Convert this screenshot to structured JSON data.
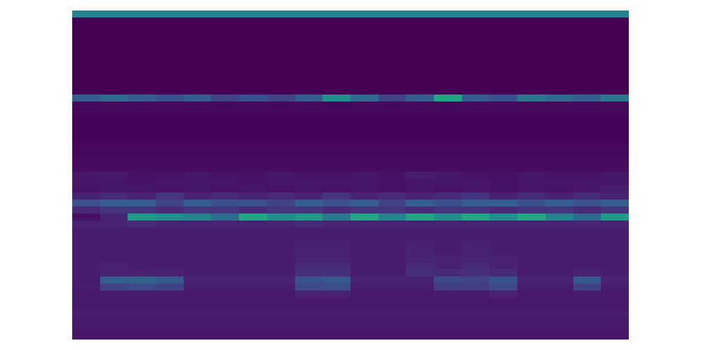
{
  "chart_data": {
    "type": "heatmap",
    "color": "viridis",
    "tick_labels": false,
    "grid": false,
    "value_range": [
      0,
      1
    ],
    "cells": [
      [
        0.45,
        0.45,
        0.45,
        0.45,
        0.45,
        0.45,
        0.45,
        0.45,
        0.45,
        0.45,
        0.45,
        0.45,
        0.45,
        0.45,
        0.45,
        0.45,
        0.45,
        0.45,
        0.45,
        0.45
      ],
      [
        0,
        0,
        0,
        0,
        0,
        0,
        0,
        0,
        0,
        0,
        0,
        0,
        0,
        0,
        0,
        0,
        0,
        0,
        0,
        0
      ],
      [
        0,
        0,
        0,
        0,
        0,
        0,
        0,
        0,
        0,
        0,
        0,
        0,
        0,
        0,
        0,
        0,
        0,
        0,
        0,
        0
      ],
      [
        0,
        0,
        0,
        0,
        0,
        0,
        0,
        0,
        0,
        0,
        0,
        0,
        0,
        0,
        0,
        0,
        0,
        0,
        0,
        0
      ],
      [
        0,
        0,
        0,
        0,
        0,
        0,
        0,
        0,
        0,
        0,
        0,
        0,
        0,
        0,
        0,
        0,
        0,
        0,
        0,
        0
      ],
      [
        0,
        0,
        0,
        0,
        0,
        0,
        0,
        0,
        0,
        0,
        0,
        0,
        0,
        0,
        0,
        0,
        0,
        0,
        0,
        0
      ],
      [
        0,
        0,
        0,
        0,
        0,
        0,
        0,
        0,
        0,
        0,
        0,
        0,
        0,
        0,
        0,
        0,
        0,
        0,
        0,
        0
      ],
      [
        0,
        0,
        0,
        0,
        0,
        0,
        0,
        0,
        0,
        0,
        0,
        0,
        0,
        0,
        0,
        0,
        0,
        0,
        0,
        0
      ],
      [
        0,
        0,
        0,
        0,
        0,
        0,
        0,
        0,
        0,
        0,
        0,
        0,
        0,
        0,
        0,
        0,
        0,
        0,
        0,
        0
      ],
      [
        0,
        0,
        0,
        0,
        0,
        0,
        0,
        0,
        0,
        0,
        0,
        0,
        0,
        0,
        0,
        0,
        0,
        0,
        0,
        0
      ],
      [
        0,
        0,
        0,
        0,
        0,
        0,
        0,
        0,
        0,
        0,
        0,
        0,
        0,
        0,
        0,
        0,
        0,
        0,
        0,
        0
      ],
      [
        0,
        0,
        0,
        0,
        0,
        0,
        0,
        0,
        0,
        0,
        0,
        0,
        0,
        0,
        0,
        0,
        0,
        0,
        0,
        0
      ],
      [
        0.3,
        0.35,
        0.3,
        0.25,
        0.3,
        0.2,
        0.25,
        0.2,
        0.3,
        0.5,
        0.35,
        0.2,
        0.3,
        0.6,
        0.3,
        0.25,
        0.4,
        0.35,
        0.3,
        0.4
      ],
      [
        0.02,
        0.02,
        0.02,
        0.02,
        0.02,
        0.02,
        0.02,
        0.02,
        0.02,
        0.02,
        0.02,
        0.02,
        0.02,
        0.02,
        0.02,
        0.02,
        0.02,
        0.02,
        0.02,
        0.02
      ],
      [
        0.02,
        0.02,
        0.02,
        0.02,
        0.02,
        0.02,
        0.02,
        0.02,
        0.02,
        0.02,
        0.02,
        0.02,
        0.02,
        0.02,
        0.02,
        0.02,
        0.02,
        0.02,
        0.02,
        0.02
      ],
      [
        0.01,
        0.01,
        0.01,
        0.01,
        0.01,
        0.01,
        0.01,
        0.01,
        0.01,
        0.01,
        0.01,
        0.01,
        0.01,
        0.01,
        0.01,
        0.01,
        0.01,
        0.01,
        0.01,
        0.01
      ],
      [
        0.01,
        0.01,
        0.01,
        0.01,
        0.01,
        0.01,
        0.01,
        0.01,
        0.01,
        0.01,
        0.01,
        0.01,
        0.01,
        0.01,
        0.01,
        0.01,
        0.01,
        0.01,
        0.01,
        0.01
      ],
      [
        0.01,
        0.01,
        0.01,
        0.01,
        0.01,
        0.01,
        0.01,
        0.01,
        0.01,
        0.01,
        0.01,
        0.01,
        0.01,
        0.01,
        0.01,
        0.01,
        0.01,
        0.01,
        0.01,
        0.01
      ],
      [
        0.01,
        0.01,
        0.01,
        0.01,
        0.01,
        0.01,
        0.01,
        0.01,
        0.01,
        0.01,
        0.01,
        0.01,
        0.01,
        0.01,
        0.01,
        0.01,
        0.01,
        0.01,
        0.01,
        0.01
      ],
      [
        0.02,
        0.02,
        0.02,
        0.02,
        0.02,
        0.02,
        0.02,
        0.02,
        0.02,
        0.02,
        0.02,
        0.02,
        0.02,
        0.02,
        0.02,
        0.02,
        0.02,
        0.02,
        0.02,
        0.02
      ],
      [
        0.02,
        0.02,
        0.02,
        0.02,
        0.02,
        0.02,
        0.02,
        0.02,
        0.02,
        0.02,
        0.02,
        0.02,
        0.02,
        0.02,
        0.02,
        0.02,
        0.02,
        0.02,
        0.02,
        0.02
      ],
      [
        0.03,
        0.03,
        0.03,
        0.03,
        0.03,
        0.03,
        0.03,
        0.03,
        0.03,
        0.03,
        0.03,
        0.03,
        0.03,
        0.03,
        0.03,
        0.03,
        0.03,
        0.03,
        0.03,
        0.03
      ],
      [
        0.03,
        0.03,
        0.03,
        0.03,
        0.03,
        0.03,
        0.03,
        0.03,
        0.03,
        0.03,
        0.03,
        0.03,
        0.03,
        0.03,
        0.03,
        0.03,
        0.03,
        0.03,
        0.03,
        0.03
      ],
      [
        0.06,
        0.07,
        0.05,
        0.05,
        0.06,
        0.05,
        0.05,
        0.06,
        0.05,
        0.05,
        0.06,
        0.05,
        0.08,
        0.06,
        0.05,
        0.05,
        0.06,
        0.05,
        0.05,
        0.06
      ],
      [
        0.06,
        0.06,
        0.05,
        0.06,
        0.06,
        0.06,
        0.05,
        0.06,
        0.06,
        0.06,
        0.06,
        0.05,
        0.06,
        0.06,
        0.06,
        0.05,
        0.06,
        0.06,
        0.06,
        0.06
      ],
      [
        0.05,
        0.06,
        0.06,
        0.05,
        0.06,
        0.05,
        0.06,
        0.05,
        0.06,
        0.05,
        0.06,
        0.05,
        0.06,
        0.05,
        0.06,
        0.05,
        0.06,
        0.05,
        0.06,
        0.08
      ],
      [
        0.1,
        0.12,
        0.1,
        0.15,
        0.1,
        0.12,
        0.1,
        0.12,
        0.1,
        0.15,
        0.1,
        0.12,
        0.1,
        0.12,
        0.15,
        0.1,
        0.12,
        0.1,
        0.12,
        0.1
      ],
      [
        0.25,
        0.3,
        0.3,
        0.2,
        0.3,
        0.25,
        0.25,
        0.2,
        0.3,
        0.25,
        0.3,
        0.2,
        0.3,
        0.25,
        0.3,
        0.3,
        0.25,
        0.3,
        0.25,
        0.3
      ],
      [
        0.12,
        0.15,
        0.15,
        0.12,
        0.15,
        0.15,
        0.12,
        0.15,
        0.15,
        0.12,
        0.15,
        0.15,
        0.12,
        0.15,
        0.15,
        0.12,
        0.15,
        0.15,
        0.12,
        0.15
      ],
      [
        0.05,
        0.1,
        0.55,
        0.5,
        0.45,
        0.35,
        0.6,
        0.5,
        0.55,
        0.4,
        0.6,
        0.45,
        0.6,
        0.5,
        0.6,
        0.5,
        0.6,
        0.45,
        0.35,
        0.55
      ],
      [
        0.1,
        0.1,
        0.12,
        0.1,
        0.1,
        0.1,
        0.1,
        0.1,
        0.12,
        0.1,
        0.1,
        0.1,
        0.1,
        0.1,
        0.1,
        0.1,
        0.1,
        0.1,
        0.1,
        0.1
      ],
      [
        0.08,
        0.08,
        0.08,
        0.08,
        0.08,
        0.08,
        0.08,
        0.08,
        0.08,
        0.08,
        0.08,
        0.08,
        0.08,
        0.08,
        0.08,
        0.08,
        0.08,
        0.08,
        0.08,
        0.08
      ],
      [
        0.08,
        0.08,
        0.08,
        0.08,
        0.08,
        0.08,
        0.08,
        0.08,
        0.08,
        0.08,
        0.08,
        0.08,
        0.08,
        0.08,
        0.08,
        0.08,
        0.08,
        0.08,
        0.08,
        0.08
      ],
      [
        0.08,
        0.08,
        0.08,
        0.08,
        0.08,
        0.08,
        0.08,
        0.08,
        0.1,
        0.1,
        0.08,
        0.08,
        0.1,
        0.08,
        0.1,
        0.08,
        0.08,
        0.08,
        0.08,
        0.08
      ],
      [
        0.08,
        0.08,
        0.08,
        0.08,
        0.08,
        0.08,
        0.08,
        0.08,
        0.1,
        0.1,
        0.08,
        0.08,
        0.1,
        0.08,
        0.1,
        0.08,
        0.08,
        0.08,
        0.08,
        0.08
      ],
      [
        0.08,
        0.08,
        0.08,
        0.08,
        0.08,
        0.08,
        0.08,
        0.08,
        0.1,
        0.1,
        0.08,
        0.08,
        0.1,
        0.1,
        0.1,
        0.1,
        0.08,
        0.08,
        0.08,
        0.08
      ],
      [
        0.08,
        0.09,
        0.08,
        0.08,
        0.08,
        0.08,
        0.08,
        0.08,
        0.12,
        0.12,
        0.08,
        0.08,
        0.12,
        0.1,
        0.12,
        0.1,
        0.08,
        0.08,
        0.08,
        0.08
      ],
      [
        0.08,
        0.1,
        0.1,
        0.1,
        0.08,
        0.08,
        0.08,
        0.08,
        0.14,
        0.14,
        0.08,
        0.08,
        0.14,
        0.12,
        0.14,
        0.12,
        0.08,
        0.08,
        0.1,
        0.08
      ],
      [
        0.08,
        0.3,
        0.32,
        0.28,
        0.1,
        0.1,
        0.1,
        0.1,
        0.25,
        0.28,
        0.1,
        0.1,
        0.1,
        0.22,
        0.2,
        0.25,
        0.1,
        0.1,
        0.28,
        0.1
      ],
      [
        0.08,
        0.2,
        0.22,
        0.2,
        0.08,
        0.08,
        0.08,
        0.08,
        0.22,
        0.24,
        0.08,
        0.08,
        0.08,
        0.18,
        0.18,
        0.22,
        0.08,
        0.08,
        0.2,
        0.08
      ],
      [
        0.07,
        0.08,
        0.08,
        0.08,
        0.07,
        0.07,
        0.07,
        0.07,
        0.1,
        0.1,
        0.07,
        0.07,
        0.07,
        0.08,
        0.08,
        0.1,
        0.07,
        0.07,
        0.08,
        0.07
      ],
      [
        0.07,
        0.07,
        0.07,
        0.07,
        0.07,
        0.07,
        0.07,
        0.07,
        0.07,
        0.07,
        0.07,
        0.07,
        0.07,
        0.07,
        0.07,
        0.07,
        0.07,
        0.07,
        0.07,
        0.07
      ],
      [
        0.07,
        0.07,
        0.07,
        0.07,
        0.07,
        0.07,
        0.07,
        0.07,
        0.07,
        0.07,
        0.07,
        0.07,
        0.07,
        0.07,
        0.07,
        0.07,
        0.07,
        0.07,
        0.07,
        0.07
      ],
      [
        0.08,
        0.08,
        0.08,
        0.08,
        0.08,
        0.08,
        0.08,
        0.08,
        0.08,
        0.08,
        0.08,
        0.08,
        0.08,
        0.08,
        0.08,
        0.08,
        0.08,
        0.08,
        0.08,
        0.08
      ],
      [
        0.07,
        0.07,
        0.07,
        0.07,
        0.07,
        0.07,
        0.07,
        0.07,
        0.07,
        0.07,
        0.07,
        0.07,
        0.07,
        0.07,
        0.07,
        0.07,
        0.07,
        0.07,
        0.07,
        0.07
      ],
      [
        0.07,
        0.07,
        0.07,
        0.07,
        0.07,
        0.07,
        0.07,
        0.07,
        0.07,
        0.07,
        0.07,
        0.07,
        0.07,
        0.07,
        0.07,
        0.07,
        0.07,
        0.07,
        0.07,
        0.07
      ],
      [
        0.06,
        0.06,
        0.06,
        0.06,
        0.06,
        0.06,
        0.06,
        0.06,
        0.06,
        0.06,
        0.06,
        0.06,
        0.06,
        0.06,
        0.06,
        0.06,
        0.06,
        0.06,
        0.06,
        0.06
      ]
    ]
  }
}
